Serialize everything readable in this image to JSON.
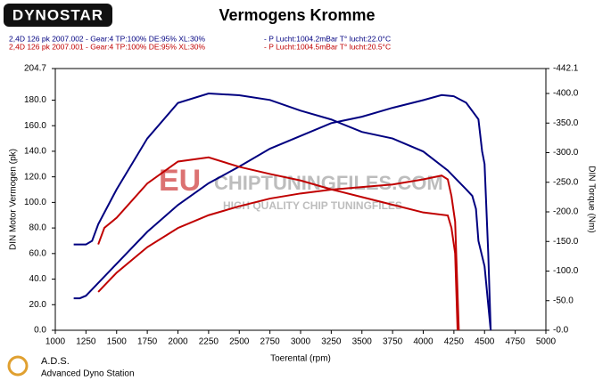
{
  "logo": "DYNOSTAR",
  "footer": {
    "brand": "A.D.S.",
    "subtitle": "Advanced Dyno Station"
  },
  "watermark": {
    "mark": "EU",
    "site": "CHIPTUNINGFILES.COM",
    "tagline": "HIGH QUALITY CHIP TUNINGFILES"
  },
  "chart_data": {
    "type": "line",
    "title": "Vermogens Kromme",
    "xlabel": "Toerental (rpm)",
    "ylabel": "DIN Motor Vermogen (pk)",
    "y2label": "DIN Torque (Nm)",
    "xlim": [
      1000,
      5000
    ],
    "xticks": [
      1000,
      1250,
      1500,
      1750,
      2000,
      2250,
      2500,
      2750,
      3000,
      3250,
      3500,
      3750,
      4000,
      4250,
      4500,
      4750,
      5000
    ],
    "ylim": [
      0,
      204.7
    ],
    "yticks": [
      {
        "value": 0,
        "label": "0.0"
      },
      {
        "value": 20,
        "label": "20.0"
      },
      {
        "value": 40,
        "label": "40.0"
      },
      {
        "value": 60,
        "label": "60.0"
      },
      {
        "value": 80,
        "label": "80.0"
      },
      {
        "value": 100,
        "label": "100.0"
      },
      {
        "value": 120,
        "label": "120.0"
      },
      {
        "value": 140,
        "label": "140.0"
      },
      {
        "value": 160,
        "label": "160.0"
      },
      {
        "value": 180,
        "label": "180.0"
      },
      204.7
    ],
    "y2lim": [
      0,
      -442.1
    ],
    "y2ticks": [
      {
        "value": 0,
        "label": "-0.0"
      },
      {
        "value": -50,
        "label": "-50.0"
      },
      {
        "value": -100,
        "label": "-100.0"
      },
      {
        "value": -150,
        "label": "-150.0"
      },
      {
        "value": -200,
        "label": "-200.0"
      },
      {
        "value": -250,
        "label": "-250.0"
      },
      {
        "value": -300,
        "label": "-300.0"
      },
      {
        "value": -350,
        "label": "-350.0"
      },
      {
        "value": -400,
        "label": "-400.0"
      },
      -442.1
    ],
    "series": [
      {
        "name": "2,4D 126 pk 2007.002 - Gear:4 TP:100% DE:95% XL:30%",
        "conditions": "- P Lucht:1004.2mBar T° lucht:22.0°C",
        "color": "#000080",
        "x": [
          1150,
          1200,
          1250,
          1300,
          1500,
          1750,
          2000,
          2250,
          2500,
          2750,
          3000,
          3250,
          3500,
          3750,
          4000,
          4150,
          4250,
          4350,
          4450,
          4480,
          4500,
          4530,
          4550
        ],
        "values": [
          25,
          25,
          27,
          32,
          52,
          77,
          98,
          115,
          128,
          142,
          152,
          162,
          167,
          174,
          180,
          184,
          183,
          178,
          165,
          140,
          130,
          60,
          0
        ]
      },
      {
        "color": "#000080",
        "axis": "y2",
        "x": [
          1150,
          1250,
          1300,
          1350,
          1500,
          1750,
          2000,
          2250,
          2500,
          2750,
          3000,
          3250,
          3500,
          3750,
          4000,
          4200,
          4350,
          4400,
          4430,
          4450,
          4500,
          4530,
          4550
        ],
        "values": [
          -145,
          -145,
          -151,
          -179,
          -238,
          -324,
          -384,
          -400,
          -397,
          -389,
          -371,
          -356,
          -335,
          -324,
          -302,
          -270,
          -238,
          -227,
          -205,
          -151,
          -108,
          -43,
          0
        ]
      },
      {
        "name": "2,4D 126 pk 2007.001 - Gear:4 TP:100% DE:95% XL:30%",
        "conditions": "- P Lucht:1004.5mBar T° lucht:20.5°C",
        "color": "#c00000",
        "x": [
          1350,
          1400,
          1500,
          1750,
          2000,
          2250,
          2500,
          2750,
          3000,
          3250,
          3500,
          3750,
          4000,
          4150,
          4200,
          4230,
          4260,
          4290
        ],
        "values": [
          30,
          35,
          45,
          65,
          80,
          90,
          97,
          103,
          107,
          110,
          112,
          114,
          118,
          121,
          118,
          105,
          85,
          0
        ]
      },
      {
        "color": "#c00000",
        "axis": "y2",
        "x": [
          1350,
          1400,
          1500,
          1750,
          2000,
          2250,
          2500,
          2750,
          3000,
          3250,
          3500,
          3750,
          4000,
          4200,
          4230,
          4260,
          4280
        ],
        "values": [
          -145,
          -173,
          -190,
          -248,
          -285,
          -292,
          -276,
          -264,
          -253,
          -238,
          -225,
          -212,
          -199,
          -194,
          -173,
          -130,
          0
        ]
      }
    ]
  }
}
